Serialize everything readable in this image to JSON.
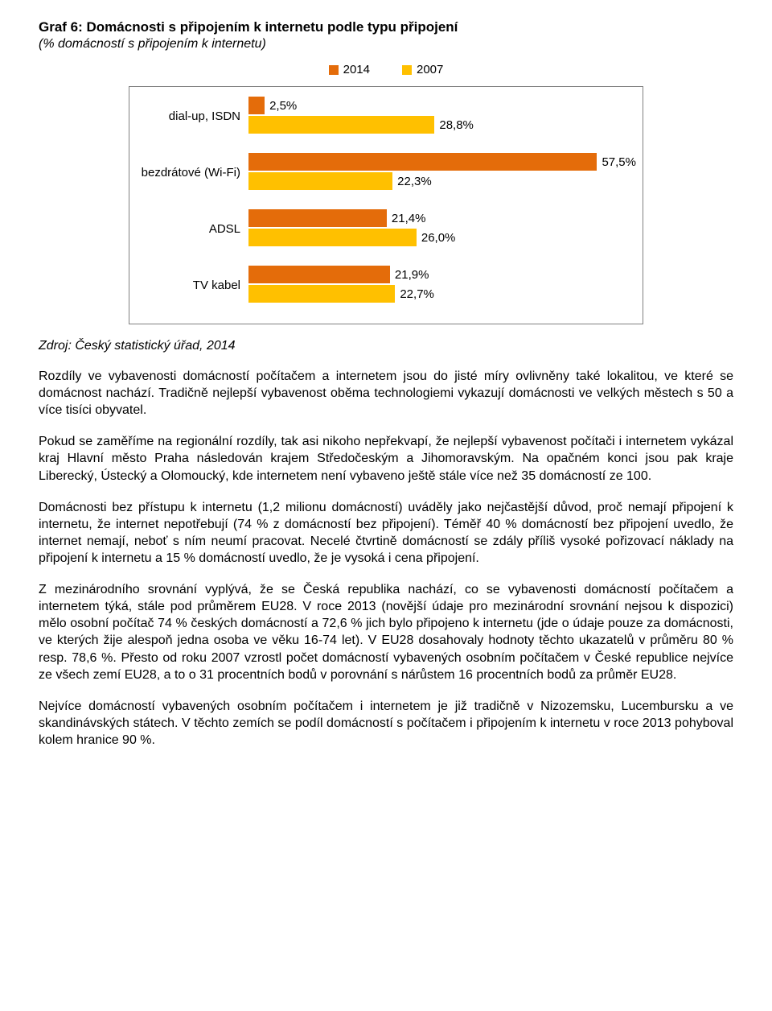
{
  "chart": {
    "title": "Graf 6: Domácnosti s připojením k internetu podle typu připojení",
    "subtitle": "(% domácností s připojením k internetu)",
    "type": "bar",
    "legend": [
      {
        "label": "2014",
        "color": "#e46c0a"
      },
      {
        "label": "2007",
        "color": "#ffc000"
      }
    ],
    "max": 60,
    "categories": [
      {
        "label": "dial-up, ISDN",
        "bars": [
          {
            "value": 2.5,
            "text": "2,5%",
            "color": "#e46c0a"
          },
          {
            "value": 28.8,
            "text": "28,8%",
            "color": "#ffc000"
          }
        ]
      },
      {
        "label": "bezdrátové (Wi-Fi)",
        "bars": [
          {
            "value": 57.5,
            "text": "57,5%",
            "color": "#e46c0a"
          },
          {
            "value": 22.3,
            "text": "22,3%",
            "color": "#ffc000"
          }
        ]
      },
      {
        "label": "ADSL",
        "bars": [
          {
            "value": 21.4,
            "text": "21,4%",
            "color": "#e46c0a"
          },
          {
            "value": 26.0,
            "text": "26,0%",
            "color": "#ffc000"
          }
        ]
      },
      {
        "label": "TV kabel",
        "bars": [
          {
            "value": 21.9,
            "text": "21,9%",
            "color": "#e46c0a"
          },
          {
            "value": 22.7,
            "text": "22,7%",
            "color": "#ffc000"
          }
        ]
      }
    ]
  },
  "source": "Zdroj: Český statistický úřad, 2014",
  "paragraphs": [
    "Rozdíly ve vybavenosti domácností počítačem a internetem jsou do jisté míry ovlivněny také lokalitou, ve které se domácnost nachází. Tradičně nejlepší vybavenost oběma technologiemi vykazují domácnosti ve velkých městech s 50 a více tisíci obyvatel.",
    "Pokud se zaměříme na regionální rozdíly, tak asi nikoho nepřekvapí, že nejlepší vybavenost počítači i internetem vykázal kraj Hlavní město Praha následován krajem Středočeským a Jihomoravským. Na opačném konci jsou pak kraje Liberecký, Ústecký a Olomoucký, kde internetem není vybaveno ještě stále více než 35 domácností ze 100.",
    "Domácnosti bez přístupu k internetu (1,2 milionu domácností) uváděly jako nejčastější důvod, proč nemají připojení k internetu, že internet nepotřebují (74 % z domácností bez připojení). Téměř 40 % domácností bez připojení uvedlo, že internet nemají, neboť s ním neumí pracovat. Necelé čtvrtině domácností se zdály příliš vysoké pořizovací náklady na připojení k internetu a 15 % domácností uvedlo, že je vysoká i cena připojení.",
    "Z mezinárodního srovnání vyplývá, že se Česká republika nachází, co se vybavenosti domácností počítačem a internetem týká, stále pod průměrem EU28. V roce 2013 (novější údaje pro mezinárodní srovnání nejsou k dispozici) mělo osobní počítač 74 % českých domácností a 72,6 % jich bylo připojeno k internetu (jde o údaje pouze za domácnosti, ve kterých žije alespoň jedna osoba ve věku 16-74 let). V EU28 dosahovaly hodnoty těchto ukazatelů v průměru 80 % resp. 78,6 %. Přesto od roku 2007 vzrostl počet domácností vybavených osobním počítačem v České republice nejvíce ze všech zemí EU28, a to o 31 procentních bodů v porovnání s nárůstem 16 procentních bodů za průměr EU28.",
    "Nejvíce domácností vybavených osobním počítačem i internetem je již tradičně v Nizozemsku, Lucembursku a ve skandinávských státech. V těchto zemích se podíl domácností s počítačem i připojením k internetu v roce 2013 pohyboval kolem hranice 90 %."
  ]
}
